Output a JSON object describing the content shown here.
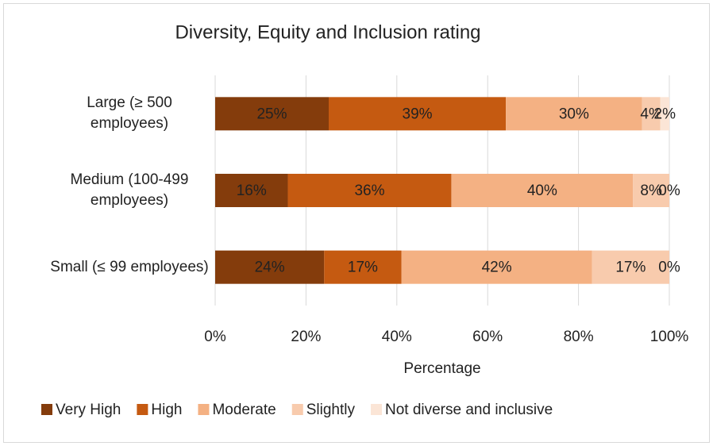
{
  "chart_data": {
    "type": "stacked-bar-horizontal",
    "title": "Diversity, Equity and Inclusion rating",
    "xlabel": "Percentage",
    "categories": [
      "Large (≥ 500 employees)",
      "Medium (100-499 employees)",
      "Small (≤ 99 employees)"
    ],
    "series": [
      {
        "name": "Very High",
        "color": "#843c0c",
        "values": [
          25,
          16,
          24
        ],
        "value_labels": [
          "25%",
          "16%",
          "24%"
        ]
      },
      {
        "name": "High",
        "color": "#c55a11",
        "values": [
          39,
          36,
          17
        ],
        "value_labels": [
          "39%",
          "36%",
          "17%"
        ]
      },
      {
        "name": "Moderate",
        "color": "#f4b183",
        "values": [
          30,
          40,
          42
        ],
        "value_labels": [
          "30%",
          "40%",
          "42%"
        ]
      },
      {
        "name": "Slightly",
        "color": "#f8cbad",
        "values": [
          4,
          8,
          17
        ],
        "value_labels": [
          "4%",
          "8%",
          "17%"
        ]
      },
      {
        "name": "Not diverse and inclusive",
        "color": "#fbe5d6",
        "values": [
          2,
          0,
          0
        ],
        "value_labels": [
          "2%",
          "0%",
          "0%"
        ]
      }
    ],
    "xlim": [
      0,
      100
    ],
    "xticks": [
      {
        "value": 0,
        "label": "0%"
      },
      {
        "value": 20,
        "label": "20%"
      },
      {
        "value": 40,
        "label": "40%"
      },
      {
        "value": 60,
        "label": "60%"
      },
      {
        "value": 80,
        "label": "80%"
      },
      {
        "value": 100,
        "label": "100%"
      }
    ],
    "grid": true,
    "legend": "bottom"
  }
}
